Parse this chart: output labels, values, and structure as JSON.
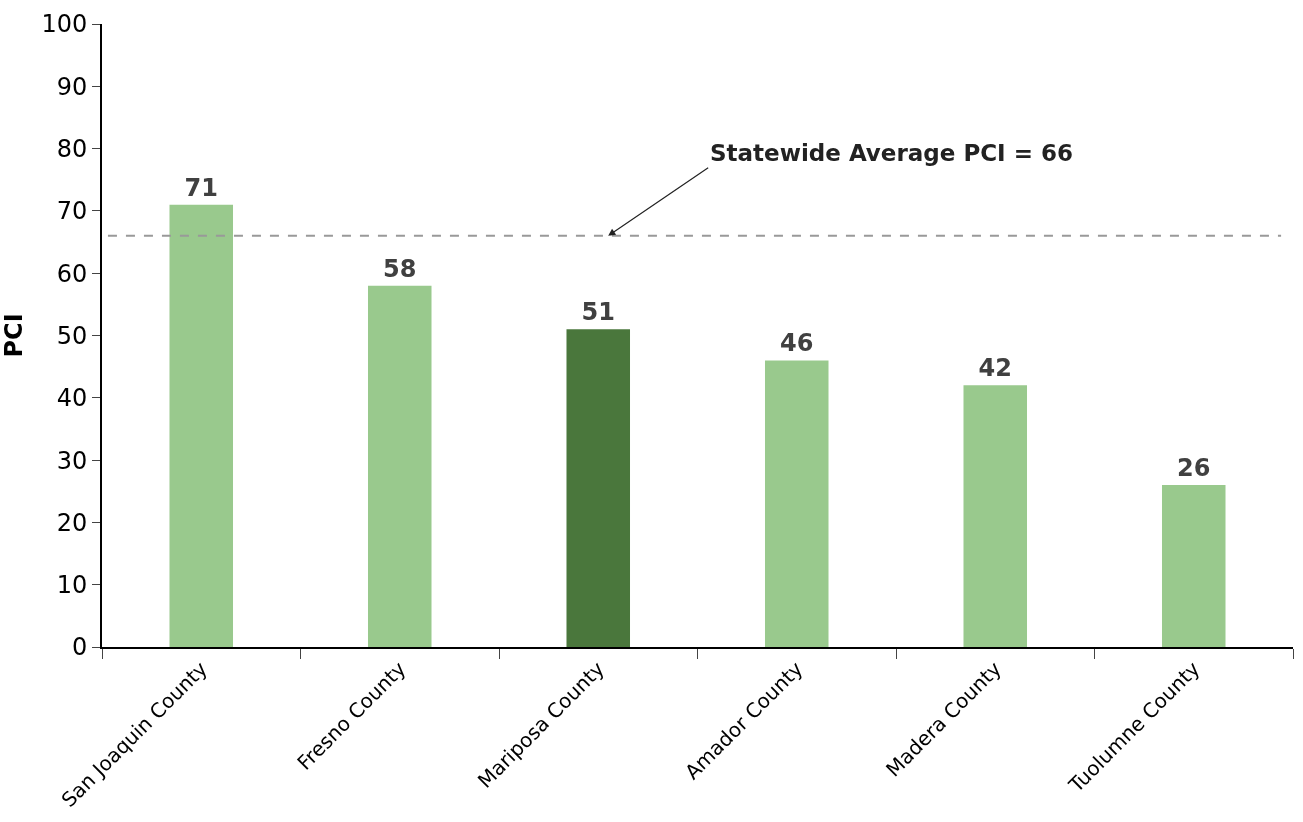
{
  "chart_data": {
    "type": "bar",
    "ylabel": "PCI",
    "categories": [
      "San Joaquin County",
      "Fresno County",
      "Mariposa County",
      "Amador County",
      "Madera County",
      "Tuolumne County"
    ],
    "values": [
      71,
      58,
      51,
      46,
      42,
      26
    ],
    "colors": [
      "#99c98d",
      "#99c98d",
      "#4a773c",
      "#99c98d",
      "#99c98d",
      "#99c98d"
    ],
    "ylim": [
      0,
      100
    ],
    "yticks": [
      0,
      10,
      20,
      30,
      40,
      50,
      60,
      70,
      80,
      90,
      100
    ],
    "data_labels": true,
    "ref_lines": [
      {
        "axis": "y",
        "value": 66,
        "label": "Statewide Average PCI = 66",
        "color": "#999999",
        "line_style": "dashed"
      }
    ]
  }
}
